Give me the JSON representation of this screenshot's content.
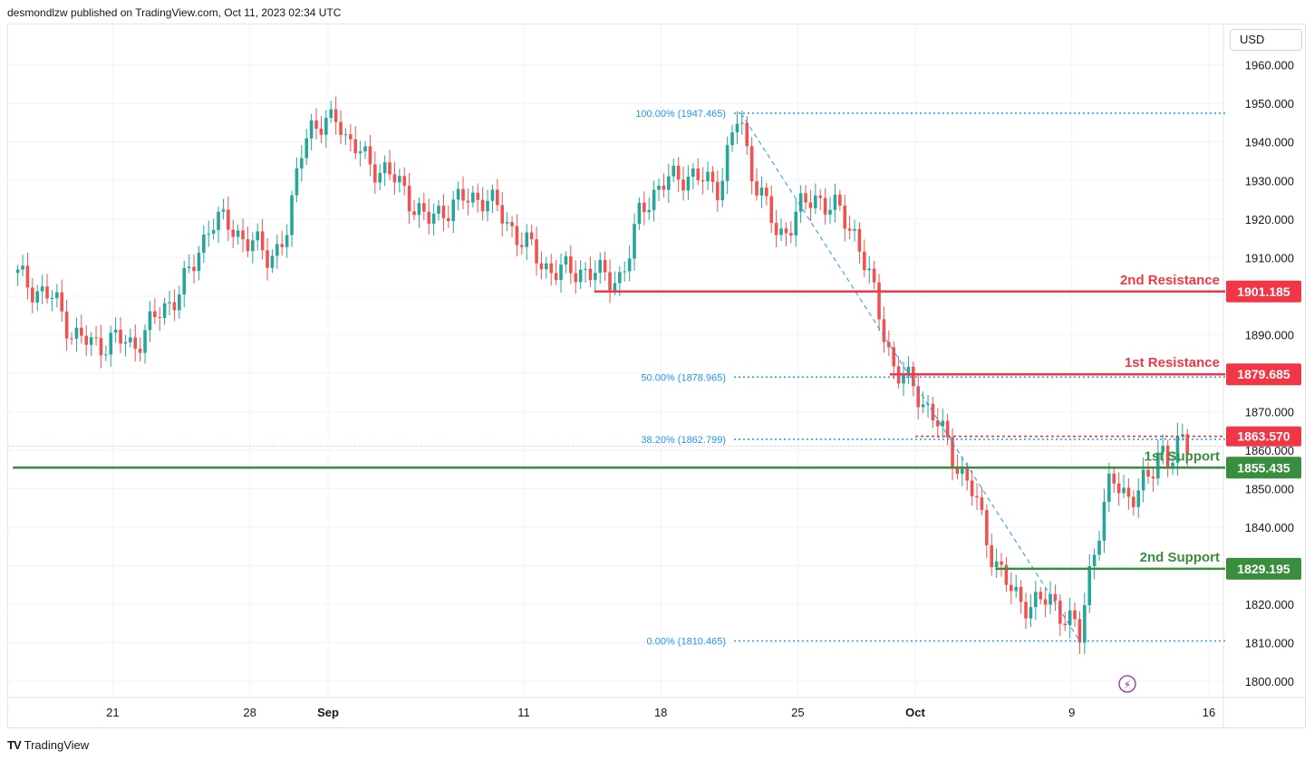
{
  "header": {
    "publisher_line": "desmondlzw published on TradingView.com, Oct 11, 2023 02:34 UTC"
  },
  "footer": {
    "brand": "TradingView"
  },
  "axis": {
    "currency": "USD"
  },
  "colors": {
    "up": "#26a69a",
    "down": "#ef5350",
    "resistance": "#f23645",
    "support": "#388e3c",
    "fib": "#2962ff",
    "grid": "#f0f3fa"
  },
  "chart_data": {
    "type": "candlestick",
    "y_range": [
      1796,
      1967
    ],
    "y_ticks": [
      1800,
      1810,
      1820,
      1830,
      1840,
      1850,
      1860,
      1870,
      1880,
      1890,
      1900,
      1910,
      1920,
      1930,
      1940,
      1950,
      1960
    ],
    "y_tick_labels": [
      "1800.000",
      "1810.000",
      "1820.000",
      "1830.000",
      "1840.000",
      "1850.000",
      "1860.000",
      "1870.000",
      "1880.000",
      "1890.000",
      "1900.000",
      "1910.000",
      "1920.000",
      "1930.000",
      "1940.000",
      "1950.000",
      "1960.000"
    ],
    "x_ticks": [
      {
        "label": "21",
        "day": 21,
        "bold": false
      },
      {
        "label": "28",
        "day": 28,
        "bold": false
      },
      {
        "label": "Sep",
        "day": 32,
        "bold": true
      },
      {
        "label": "11",
        "day": 42,
        "bold": false
      },
      {
        "label": "18",
        "day": 49,
        "bold": false
      },
      {
        "label": "25",
        "day": 56,
        "bold": false
      },
      {
        "label": "Oct",
        "day": 62,
        "bold": true
      },
      {
        "label": "9",
        "day": 70,
        "bold": false
      },
      {
        "label": "16",
        "day": 77,
        "bold": false
      }
    ],
    "day_span": [
      15.9,
      77.3
    ],
    "price_path": [
      [
        15.9,
        1906
      ],
      [
        17,
        1902
      ],
      [
        18,
        1899
      ],
      [
        19,
        1890
      ],
      [
        20,
        1887
      ],
      [
        21,
        1889
      ],
      [
        22,
        1887
      ],
      [
        23,
        1893
      ],
      [
        24,
        1899
      ],
      [
        25,
        1906
      ],
      [
        26,
        1920
      ],
      [
        27,
        1918
      ],
      [
        28,
        1914
      ],
      [
        29,
        1910
      ],
      [
        30,
        1917
      ],
      [
        30.6,
        1938
      ],
      [
        31,
        1945
      ],
      [
        31.6,
        1943
      ],
      [
        32,
        1944
      ],
      [
        32.5,
        1948
      ],
      [
        33,
        1940
      ],
      [
        34,
        1935
      ],
      [
        35,
        1932
      ],
      [
        36,
        1927
      ],
      [
        37,
        1919
      ],
      [
        38,
        1923
      ],
      [
        39,
        1925
      ],
      [
        40,
        1926
      ],
      [
        41,
        1920
      ],
      [
        42,
        1914
      ],
      [
        43,
        1908
      ],
      [
        44,
        1906
      ],
      [
        45,
        1907
      ],
      [
        46,
        1905
      ],
      [
        47,
        1905
      ],
      [
        47.5,
        1912
      ],
      [
        48,
        1924
      ],
      [
        49,
        1928
      ],
      [
        50,
        1932
      ],
      [
        51,
        1930
      ],
      [
        52,
        1929
      ],
      [
        53,
        1947.465
      ],
      [
        53.5,
        1935
      ],
      [
        54,
        1928
      ],
      [
        55,
        1915
      ],
      [
        56,
        1922
      ],
      [
        57,
        1926
      ],
      [
        58,
        1922
      ],
      [
        59,
        1916
      ],
      [
        60,
        1898
      ],
      [
        61,
        1880
      ],
      [
        62,
        1876
      ],
      [
        63,
        1868
      ],
      [
        64,
        1858
      ],
      [
        65,
        1848
      ],
      [
        66,
        1832
      ],
      [
        67,
        1822
      ],
      [
        68,
        1820
      ],
      [
        69,
        1821
      ],
      [
        70,
        1815
      ],
      [
        70.4,
        1811
      ],
      [
        71,
        1832
      ],
      [
        72,
        1852
      ],
      [
        73,
        1848
      ],
      [
        74,
        1852
      ],
      [
        74.5,
        1862
      ],
      [
        75,
        1857
      ],
      [
        75.5,
        1861
      ],
      [
        76,
        1861
      ]
    ],
    "annotations": {
      "levels": [
        {
          "name": "2nd Resistance",
          "value": 1901.185,
          "label": "1901.185",
          "kind": "resistance",
          "from_day": 45.6
        },
        {
          "name": "1st Resistance",
          "value": 1879.685,
          "label": "1879.685",
          "kind": "resistance",
          "from_day": 60.7
        },
        {
          "name": "1st Support",
          "value": 1855.435,
          "label": "1855.435",
          "kind": "support",
          "from_day": 15.9
        },
        {
          "name": "2nd Support",
          "value": 1829.195,
          "label": "1829.195",
          "kind": "support",
          "from_day": 66.1
        }
      ],
      "last_price": {
        "value": 1863.57,
        "label": "1863.570"
      },
      "fib_levels": [
        {
          "label": "100.00% (1947.465)",
          "value": 1947.465
        },
        {
          "label": "50.00% (1878.965)",
          "value": 1878.965
        },
        {
          "label": "38.20% (1862.799)",
          "value": 1862.799
        },
        {
          "label": "0.00% (1810.465)",
          "value": 1810.465
        }
      ],
      "fib_trend": {
        "from": [
          53.1,
          1947.465
        ],
        "to": [
          70.4,
          1810.465
        ]
      }
    }
  }
}
